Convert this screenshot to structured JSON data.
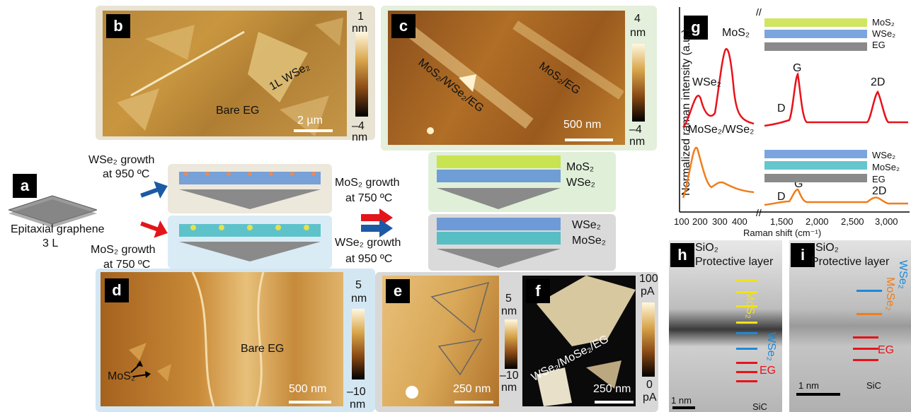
{
  "panels": {
    "a": "a",
    "b": "b",
    "c": "c",
    "d": "d",
    "e": "e",
    "f": "f",
    "g": "g",
    "h": "h",
    "i": "i"
  },
  "panel_a": {
    "substrate_label_1": "Epitaxial graphene",
    "substrate_label_2": "3 L",
    "wse2_growth_1": "WSe₂ growth",
    "wse2_growth_2": "at 950 ºC",
    "mos2_growth_1": "MoS₂ growth",
    "mos2_growth_2": "at 750 ºC",
    "mid_mos2_growth_1": "MoS₂ growth",
    "mid_mos2_growth_2": "at 750 ºC",
    "mid_wse2_growth_1": "WSe₂ growth",
    "mid_wse2_growth_2": "at 950 ºC",
    "stack_top_1": "MoS₂",
    "stack_top_2": "WSe₂",
    "stack_bot_1": "WSe₂",
    "stack_bot_2": "MoSe₂"
  },
  "panel_b": {
    "cbar_top": "1",
    "cbar_top_unit": "nm",
    "cbar_bot": "–4",
    "cbar_bot_unit": "nm",
    "label_wse2": "1L WSe₂",
    "label_bare": "Bare EG",
    "scale": "2 µm"
  },
  "panel_c": {
    "cbar_top": "4",
    "cbar_top_unit": "nm",
    "cbar_bot": "–4",
    "cbar_bot_unit": "nm",
    "label_hetero": "MoS₂/WSe₂/EG",
    "label_mos2": "MoS₂/EG",
    "scale": "500 nm"
  },
  "panel_d": {
    "cbar_top": "5",
    "cbar_top_unit": "nm",
    "cbar_bot": "–10",
    "cbar_bot_unit": "nm",
    "label_mos2": "MoS₂",
    "label_bare": "Bare EG",
    "scale": "500 nm"
  },
  "panel_e": {
    "cbar_top": "5",
    "cbar_top_unit": "nm",
    "cbar_bot": "–10",
    "cbar_bot_unit": "nm",
    "scale": "250 nm"
  },
  "panel_f": {
    "cbar_top": "100",
    "cbar_top_unit": "pA",
    "cbar_bot": "0",
    "cbar_bot_unit": "pA",
    "label": "WSe₂/MoSe₂/EG",
    "scale": "250 nm"
  },
  "panel_g": {
    "ylabel": "Normalized raman intensity (a.u.)",
    "xlabel": "Raman shift (cm⁻¹)",
    "ticks_left": [
      "100",
      "200",
      "300",
      "400"
    ],
    "ticks_right": [
      "1,500",
      "2,000",
      "2,500",
      "3,000"
    ],
    "peak_mos2": "MoS₂",
    "peak_wse2": "WSe₂",
    "label_mose2wse2": "MoSe₂/WSe₂",
    "peak_d_top": "D",
    "peak_g_top": "G",
    "peak_2d_top": "2D",
    "peak_d_bot": "D",
    "peak_g_bot": "G",
    "peak_2d_bot": "2D",
    "legend_top": [
      "MoS₂",
      "WSe₂",
      "EG"
    ],
    "legend_bot": [
      "WSe₂",
      "MoSe₂",
      "EG"
    ],
    "color_top": "#e8121a",
    "color_bot": "#f07d1a"
  },
  "panel_h": {
    "sio2": "SiO₂",
    "protective": "Protective layer",
    "mos2": "MoS₂",
    "wse2": "WSe₂",
    "eg": "EG",
    "scale": "1 nm",
    "sic": "SiC"
  },
  "panel_i": {
    "sio2": "SiO₂",
    "protective": "Protective layer",
    "wse2": "WSe₂",
    "mose2": "MoSe₂",
    "eg": "EG",
    "scale": "1 nm",
    "sic": "SiC"
  }
}
